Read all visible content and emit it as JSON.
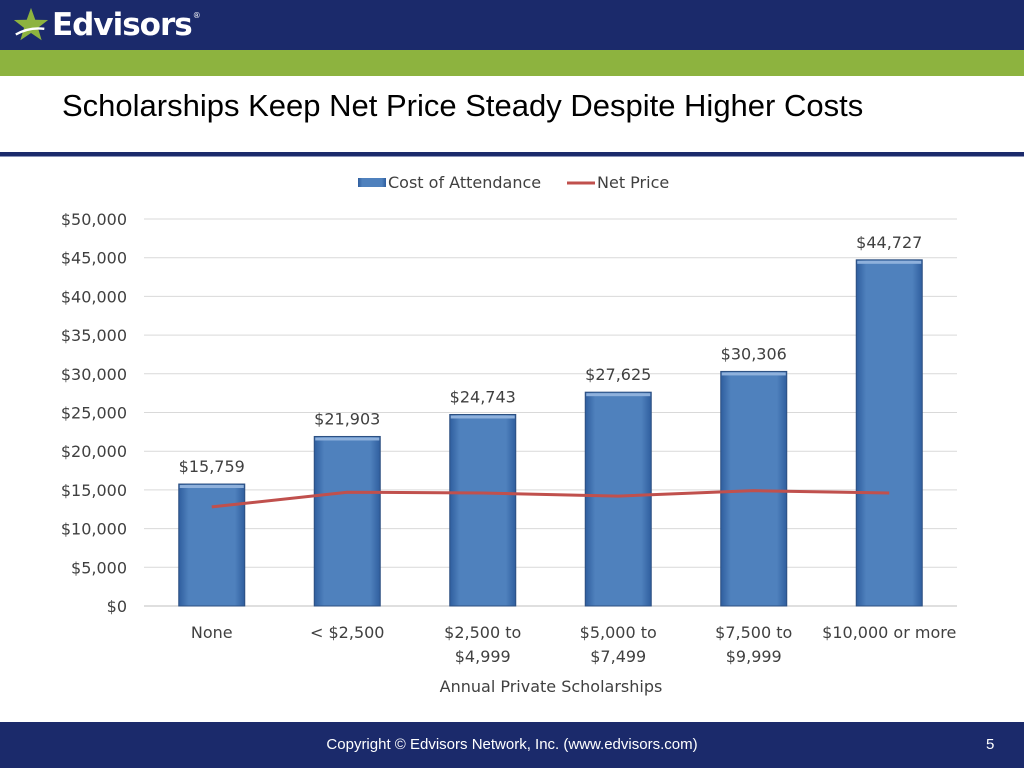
{
  "brand": {
    "name": "Edvisors",
    "registered": "®"
  },
  "title": "Scholarships Keep Net Price Steady Despite Higher Costs",
  "footer": {
    "copyright": "Copyright © Edvisors Network, Inc. (www.edvisors.com)",
    "page_number": "5"
  },
  "colors": {
    "header_navy": "#1b2a6b",
    "header_green": "#8db33f",
    "bar_blue": "#4f81bd",
    "line_red": "#c0504d"
  },
  "chart_data": {
    "type": "bar",
    "categories": [
      "None",
      "< $2,500",
      "$2,500 to $4,999",
      "$5,000 to $7,499",
      "$7,500 to $9,999",
      "$10,000 or more"
    ],
    "category_lines": [
      [
        "None"
      ],
      [
        "< $2,500"
      ],
      [
        "$2,500 to",
        "$4,999"
      ],
      [
        "$5,000 to",
        "$7,499"
      ],
      [
        "$7,500 to",
        "$9,999"
      ],
      [
        "$10,000 or more"
      ]
    ],
    "series": [
      {
        "name": "Cost of Attendance",
        "kind": "bar",
        "values": [
          15759,
          21903,
          24743,
          27625,
          30306,
          44727
        ],
        "labels": [
          "$15,759",
          "$21,903",
          "$24,743",
          "$27,625",
          "$30,306",
          "$44,727"
        ]
      },
      {
        "name": "Net Price",
        "kind": "line",
        "values": [
          12800,
          14700,
          14600,
          14200,
          14900,
          14600
        ]
      }
    ],
    "xlabel": "Annual Private Scholarships",
    "ylabel": "",
    "ylim": [
      0,
      50000
    ],
    "yticks": [
      "$0",
      "$5,000",
      "$10,000",
      "$15,000",
      "$20,000",
      "$25,000",
      "$30,000",
      "$35,000",
      "$40,000",
      "$45,000",
      "$50,000"
    ],
    "legend_position": "top",
    "grid": true
  }
}
